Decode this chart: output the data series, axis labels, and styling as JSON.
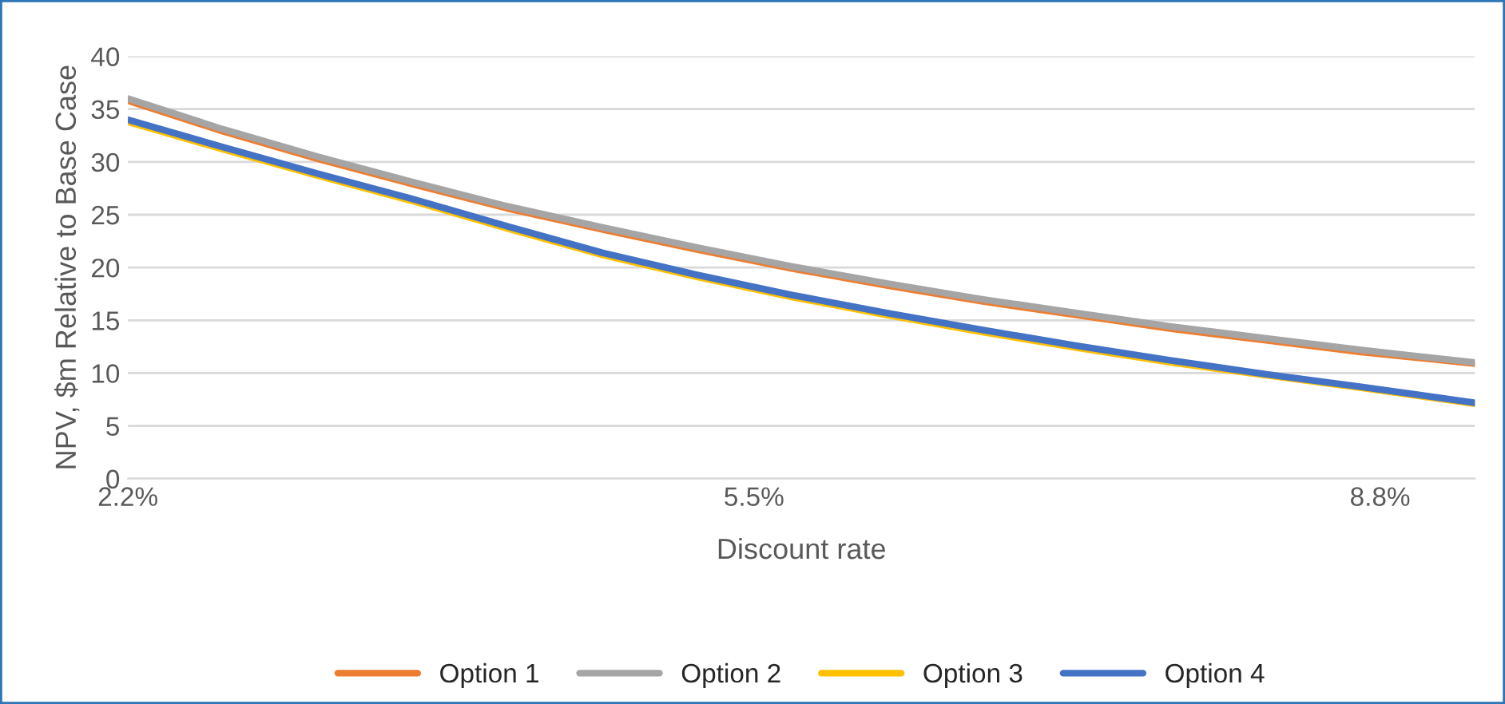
{
  "chart_data": {
    "type": "line",
    "xlabel": "Discount rate",
    "ylabel": "NPV, $m Relative to Base Case",
    "x": [
      2.2,
      2.7,
      3.2,
      3.7,
      4.2,
      4.7,
      5.2,
      5.7,
      6.2,
      6.7,
      7.2,
      7.7,
      8.2,
      8.7,
      9.3
    ],
    "series": [
      {
        "name": "Option 1",
        "color": "#ed7d31",
        "values": [
          35.8,
          32.9,
          30.3,
          27.9,
          25.6,
          23.6,
          21.7,
          19.9,
          18.3,
          16.8,
          15.5,
          14.2,
          13.1,
          12.0,
          10.9
        ]
      },
      {
        "name": "Option 2",
        "color": "#a5a5a5",
        "values": [
          36.0,
          33.1,
          30.5,
          28.1,
          25.8,
          23.8,
          21.9,
          20.1,
          18.5,
          17.0,
          15.7,
          14.4,
          13.3,
          12.2,
          11.0
        ]
      },
      {
        "name": "Option 3",
        "color": "#ffc000",
        "values": [
          33.8,
          31.2,
          28.7,
          26.3,
          23.7,
          21.2,
          19.1,
          17.2,
          15.5,
          13.9,
          12.4,
          11.0,
          9.8,
          8.6,
          7.1
        ]
      },
      {
        "name": "Option 4",
        "color": "#4472c4",
        "values": [
          34.0,
          31.4,
          28.9,
          26.5,
          23.9,
          21.4,
          19.3,
          17.4,
          15.7,
          14.1,
          12.6,
          11.2,
          9.9,
          8.7,
          7.2
        ]
      }
    ],
    "xlim": [
      2.2,
      9.3
    ],
    "xticks": [
      {
        "value": 2.2,
        "label": "2.2%"
      },
      {
        "value": 5.5,
        "label": "5.5%"
      },
      {
        "value": 8.8,
        "label": "8.8%"
      }
    ],
    "ylim": [
      0,
      40
    ],
    "yticks": [
      0,
      5,
      10,
      15,
      20,
      25,
      30,
      35,
      40
    ],
    "grid": "y",
    "legend": "bottom",
    "marker": "none",
    "line_style": "solid"
  }
}
